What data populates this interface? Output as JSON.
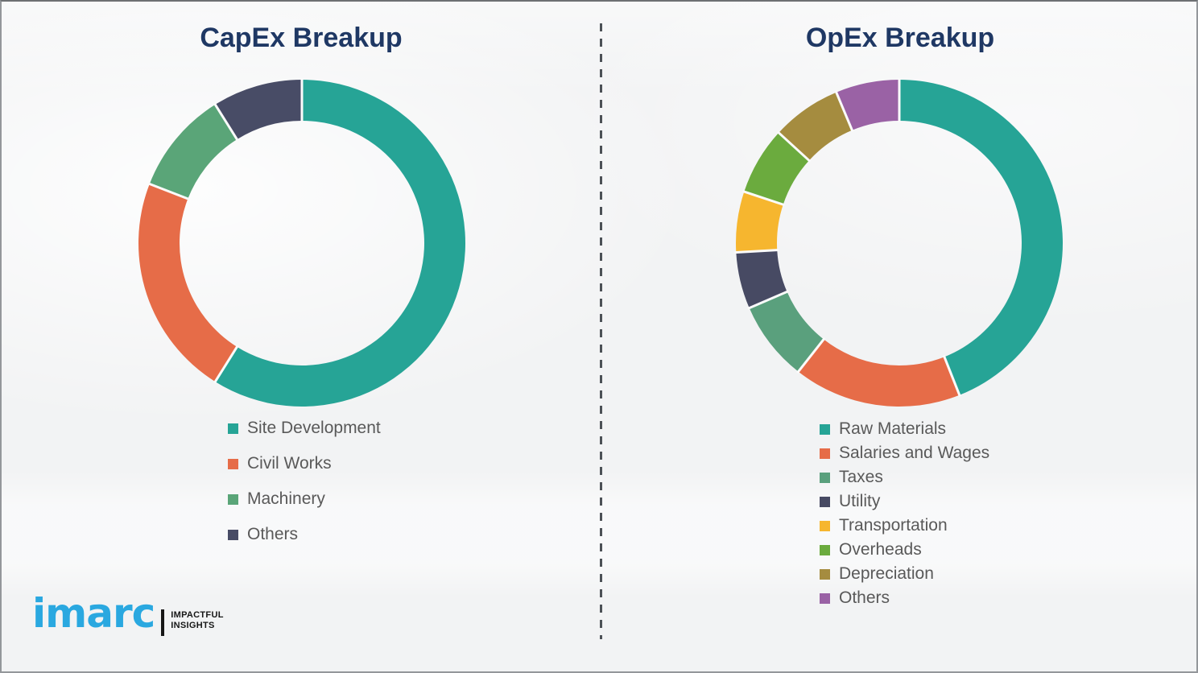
{
  "page": {
    "background_color": "#f2f3f4",
    "divider_style": "vertical-dashed",
    "divider_color": "#4c5156",
    "title_color": "#1f3864",
    "legend_text_color": "#595959"
  },
  "branding": {
    "logo_text": "imarc",
    "tagline_line1": "IMPACTFUL",
    "tagline_line2": "INSIGHTS",
    "logo_color": "#2aa8e0"
  },
  "chart_data": [
    {
      "type": "pie",
      "variant": "donut",
      "title": "CapEx Breakup",
      "legend_position": "bottom-left",
      "start_angle_deg": 0,
      "direction": "clockwise",
      "unit": "percent-of-ring",
      "categories": [
        "Site Development",
        "Civil Works",
        "Machinery",
        "Others"
      ],
      "values": [
        58.9,
        22.0,
        10.2,
        8.9
      ],
      "colors": [
        "#26a496",
        "#e66c48",
        "#5aa578",
        "#484c66"
      ]
    },
    {
      "type": "pie",
      "variant": "donut",
      "title": "OpEx Breakup",
      "legend_position": "bottom-left",
      "start_angle_deg": 0,
      "direction": "clockwise",
      "unit": "percent-of-ring",
      "categories": [
        "Raw Materials",
        "Salaries and Wages",
        "Taxes",
        "Utility",
        "Transportation",
        "Overheads",
        "Depreciation",
        "Others"
      ],
      "values": [
        44.0,
        16.6,
        7.9,
        5.6,
        6.0,
        6.7,
        6.9,
        6.3
      ],
      "colors": [
        "#26a496",
        "#e66c48",
        "#5aa07d",
        "#474a63",
        "#f6b62f",
        "#6bab3e",
        "#a58c3f",
        "#9a62a5"
      ]
    }
  ]
}
